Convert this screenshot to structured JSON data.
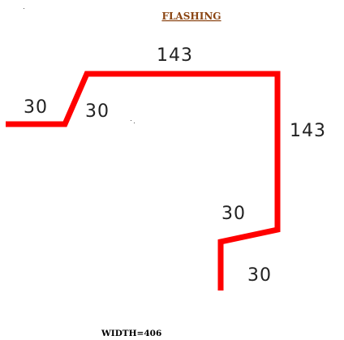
{
  "title": "FLASHING",
  "profile_color": "#ff0000",
  "title_color": "#8b4513",
  "segments": [
    {
      "label": "30"
    },
    {
      "label": "30"
    },
    {
      "label": "143"
    },
    {
      "label": "143"
    },
    {
      "label": "30"
    },
    {
      "label": "30"
    }
  ],
  "width_label": "WIDTH=406"
}
